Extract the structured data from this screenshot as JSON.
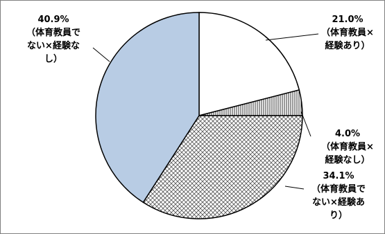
{
  "chart_data": {
    "type": "pie",
    "start_angle_deg": 0,
    "direction": "clockwise",
    "colors": {
      "edge": "#000000",
      "leader": "#000000",
      "white": "#ffffff",
      "blue": "#b8cce4",
      "hatch": "#555555"
    },
    "slices": [
      {
        "value": 21.0,
        "pct_label": "21.0%",
        "label_lines": [
          "（体育教員×",
          "経験あり）"
        ],
        "fill": "white"
      },
      {
        "value": 4.0,
        "pct_label": "4.0%",
        "label_lines": [
          "（体育教員×",
          "経験なし）"
        ],
        "fill": "vertical-lines"
      },
      {
        "value": 34.1,
        "pct_label": "34.1%",
        "label_lines": [
          "（体育教員で",
          "ない×経験あ",
          "り）"
        ],
        "fill": "crosshatch"
      },
      {
        "value": 40.9,
        "pct_label": "40.9%",
        "label_lines": [
          "（体育教員で",
          "ない×経験な",
          "し）"
        ],
        "fill": "light-blue"
      }
    ]
  }
}
